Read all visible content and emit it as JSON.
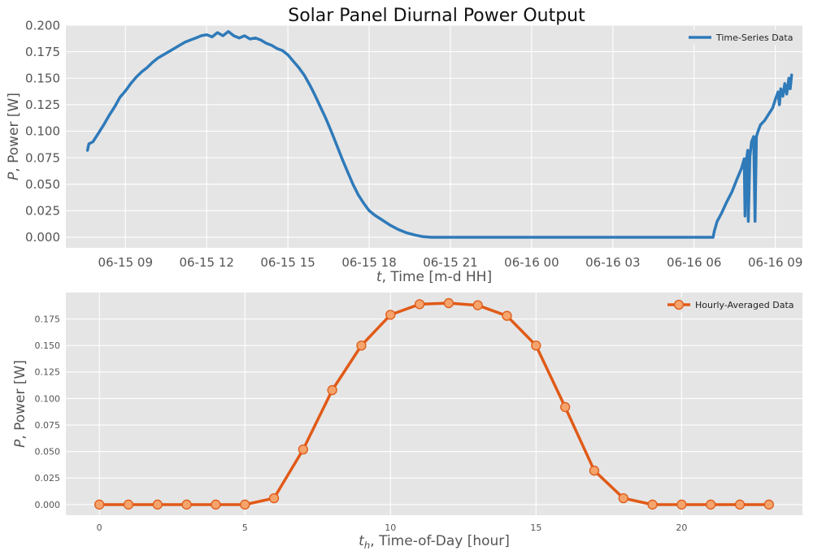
{
  "title": "Solar Panel Diurnal Power Output",
  "chart_data": [
    {
      "type": "line",
      "name": "time-series",
      "series": [
        {
          "name": "Time-Series Data",
          "color": "#2f7ab9"
        }
      ],
      "xlabel_var": "t",
      "xlabel_rest": ", Time [m-d HH]",
      "ylabel_var": "P",
      "ylabel_rest": ", Power [W]",
      "x_unit": "hours since 06-15 00:00",
      "xlim": [
        6.8,
        34.0
      ],
      "ylim": [
        -0.01,
        0.2
      ],
      "xticks": [
        9,
        12,
        15,
        18,
        21,
        24,
        27,
        30,
        33
      ],
      "xtick_labels": [
        "06-15 09",
        "06-15 12",
        "06-15 15",
        "06-15 18",
        "06-15 21",
        "06-16 00",
        "06-16 03",
        "06-16 06",
        "06-16 09"
      ],
      "yticks": [
        0.0,
        0.025,
        0.05,
        0.075,
        0.1,
        0.125,
        0.15,
        0.175,
        0.2
      ],
      "ytick_labels": [
        "0.000",
        "0.025",
        "0.050",
        "0.075",
        "0.100",
        "0.125",
        "0.150",
        "0.175",
        "0.200"
      ],
      "legend_position": "top-right",
      "grid": true,
      "points": [
        [
          7.6,
          0.082
        ],
        [
          7.65,
          0.088
        ],
        [
          7.8,
          0.09
        ],
        [
          8.0,
          0.098
        ],
        [
          8.2,
          0.106
        ],
        [
          8.4,
          0.115
        ],
        [
          8.6,
          0.123
        ],
        [
          8.8,
          0.132
        ],
        [
          9.0,
          0.138
        ],
        [
          9.2,
          0.145
        ],
        [
          9.4,
          0.151
        ],
        [
          9.6,
          0.156
        ],
        [
          9.8,
          0.16
        ],
        [
          10.0,
          0.165
        ],
        [
          10.2,
          0.169
        ],
        [
          10.4,
          0.172
        ],
        [
          10.6,
          0.175
        ],
        [
          10.8,
          0.178
        ],
        [
          11.0,
          0.181
        ],
        [
          11.2,
          0.184
        ],
        [
          11.4,
          0.186
        ],
        [
          11.6,
          0.188
        ],
        [
          11.8,
          0.19
        ],
        [
          12.0,
          0.191
        ],
        [
          12.2,
          0.189
        ],
        [
          12.4,
          0.193
        ],
        [
          12.6,
          0.19
        ],
        [
          12.8,
          0.194
        ],
        [
          13.0,
          0.19
        ],
        [
          13.2,
          0.188
        ],
        [
          13.4,
          0.19
        ],
        [
          13.6,
          0.187
        ],
        [
          13.8,
          0.188
        ],
        [
          14.0,
          0.186
        ],
        [
          14.2,
          0.183
        ],
        [
          14.4,
          0.181
        ],
        [
          14.6,
          0.178
        ],
        [
          14.8,
          0.176
        ],
        [
          15.0,
          0.172
        ],
        [
          15.2,
          0.166
        ],
        [
          15.4,
          0.16
        ],
        [
          15.6,
          0.153
        ],
        [
          15.8,
          0.144
        ],
        [
          16.0,
          0.134
        ],
        [
          16.2,
          0.123
        ],
        [
          16.4,
          0.112
        ],
        [
          16.6,
          0.1
        ],
        [
          16.8,
          0.087
        ],
        [
          17.0,
          0.074
        ],
        [
          17.2,
          0.062
        ],
        [
          17.4,
          0.05
        ],
        [
          17.6,
          0.04
        ],
        [
          17.8,
          0.032
        ],
        [
          18.0,
          0.025
        ],
        [
          18.2,
          0.021
        ],
        [
          18.5,
          0.016
        ],
        [
          18.8,
          0.011
        ],
        [
          19.1,
          0.007
        ],
        [
          19.4,
          0.004
        ],
        [
          19.7,
          0.002
        ],
        [
          20.0,
          0.0005
        ],
        [
          20.3,
          0.0
        ],
        [
          24.0,
          0.0
        ],
        [
          28.0,
          0.0
        ],
        [
          30.6,
          0.0
        ],
        [
          30.7,
          0.0
        ],
        [
          30.75,
          0.006
        ],
        [
          30.85,
          0.015
        ],
        [
          31.0,
          0.022
        ],
        [
          31.2,
          0.033
        ],
        [
          31.4,
          0.043
        ],
        [
          31.6,
          0.056
        ],
        [
          31.75,
          0.065
        ],
        [
          31.85,
          0.074
        ],
        [
          31.88,
          0.02
        ],
        [
          31.92,
          0.07
        ],
        [
          31.98,
          0.082
        ],
        [
          32.0,
          0.015
        ],
        [
          32.06,
          0.076
        ],
        [
          32.12,
          0.09
        ],
        [
          32.2,
          0.095
        ],
        [
          32.25,
          0.015
        ],
        [
          32.3,
          0.095
        ],
        [
          32.36,
          0.1
        ],
        [
          32.45,
          0.106
        ],
        [
          32.6,
          0.11
        ],
        [
          32.75,
          0.116
        ],
        [
          32.9,
          0.122
        ],
        [
          33.0,
          0.13
        ],
        [
          33.1,
          0.137
        ],
        [
          33.15,
          0.125
        ],
        [
          33.2,
          0.14
        ],
        [
          33.28,
          0.133
        ],
        [
          33.35,
          0.145
        ],
        [
          33.42,
          0.135
        ],
        [
          33.5,
          0.15
        ],
        [
          33.55,
          0.14
        ],
        [
          33.6,
          0.153
        ]
      ]
    },
    {
      "type": "line",
      "name": "hourly",
      "series": [
        {
          "name": "Hourly-Averaged Data",
          "color": "#e05a17",
          "marker_fill": "#f4a46c"
        }
      ],
      "xlabel_var": "t",
      "xlabel_sub": "h",
      "xlabel_rest": ", Time-of-Day [hour]",
      "ylabel_var": "P",
      "ylabel_rest": ", Power [W]",
      "xlim": [
        -1.15,
        24.15
      ],
      "ylim": [
        -0.01,
        0.2
      ],
      "xticks": [
        0,
        5,
        10,
        15,
        20
      ],
      "xtick_labels": [
        "0",
        "5",
        "10",
        "15",
        "20"
      ],
      "yticks": [
        0.0,
        0.025,
        0.05,
        0.075,
        0.1,
        0.125,
        0.15,
        0.175
      ],
      "ytick_labels": [
        "0.000",
        "0.025",
        "0.050",
        "0.075",
        "0.100",
        "0.125",
        "0.150",
        "0.175"
      ],
      "legend_position": "top-right",
      "grid": true,
      "x": [
        0,
        1,
        2,
        3,
        4,
        5,
        6,
        7,
        8,
        9,
        10,
        11,
        12,
        13,
        14,
        15,
        16,
        17,
        18,
        19,
        20,
        21,
        22,
        23
      ],
      "values": [
        0.0,
        0.0,
        0.0,
        0.0,
        0.0,
        0.0,
        0.006,
        0.052,
        0.108,
        0.15,
        0.179,
        0.189,
        0.19,
        0.188,
        0.178,
        0.15,
        0.092,
        0.032,
        0.006,
        0.0,
        0.0,
        0.0,
        0.0,
        0.0
      ]
    }
  ]
}
